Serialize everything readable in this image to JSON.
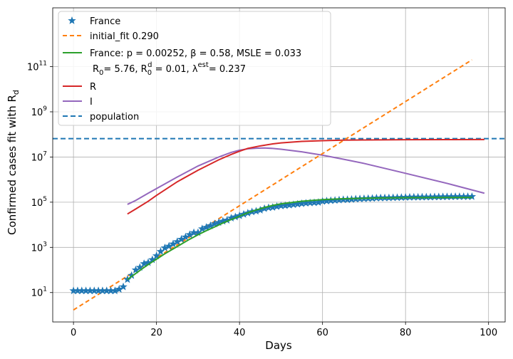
{
  "chart_data": {
    "type": "line",
    "title": "",
    "xlabel": "Days",
    "ylabel": "Confirmed cases fit with R",
    "ylabel_subscript": "d",
    "xlim": [
      -5,
      104
    ],
    "ylim": [
      0.5,
      40000000000000
    ],
    "yscale": "log",
    "grid": true,
    "legend_position": "top-left",
    "x_ticks": [
      0,
      20,
      40,
      60,
      80,
      100
    ],
    "y_ticks": [
      {
        "value": 10,
        "base": "10",
        "exp": "1"
      },
      {
        "value": 1000,
        "base": "10",
        "exp": "3"
      },
      {
        "value": 100000,
        "base": "10",
        "exp": "5"
      },
      {
        "value": 10000000,
        "base": "10",
        "exp": "7"
      },
      {
        "value": 1000000000,
        "base": "10",
        "exp": "9"
      },
      {
        "value": 100000000000,
        "base": "10",
        "exp": "11"
      }
    ],
    "legend": [
      {
        "series": "France",
        "text": "France"
      },
      {
        "series": "initial_fit",
        "text": "initial_fit 0.290"
      },
      {
        "series": "fit",
        "text": "France: p = 0.00252,  β =  0.58, MSLE = 0.033"
      },
      {
        "series": "R",
        "text": "R"
      },
      {
        "series": "I",
        "text": "I"
      },
      {
        "series": "population",
        "text": "population"
      }
    ],
    "legend_fit_line2": {
      "r0_base": "R",
      "r0_sub": "0",
      "r0_val": "= 5.76, ",
      "rd_base": "R",
      "rd_sub": "0",
      "rd_sup": "d",
      "rd_val": " = 0.01, ",
      "lam": "λ",
      "lam_sup": "est",
      "lam_val": "= 0.237"
    },
    "series": [
      {
        "name": "France",
        "kind": "markers",
        "marker": "star",
        "color": "#1f77b4",
        "x": [
          0,
          1,
          2,
          3,
          4,
          5,
          6,
          7,
          8,
          9,
          10,
          11,
          12,
          13,
          14,
          15,
          16,
          17,
          18,
          19,
          20,
          21,
          22,
          23,
          24,
          25,
          26,
          27,
          28,
          29,
          30,
          31,
          32,
          33,
          34,
          35,
          36,
          37,
          38,
          39,
          40,
          41,
          42,
          43,
          44,
          45,
          46,
          47,
          48,
          49,
          50,
          51,
          52,
          53,
          54,
          55,
          56,
          57,
          58,
          59,
          60,
          61,
          62,
          63,
          64,
          65,
          66,
          67,
          68,
          69,
          70,
          71,
          72,
          73,
          74,
          75,
          76,
          77,
          78,
          79,
          80,
          81,
          82,
          83,
          84,
          85,
          86,
          87,
          88,
          89,
          90,
          91,
          92,
          93,
          94,
          95,
          96
        ],
        "y": [
          12,
          12,
          12,
          12,
          12,
          12,
          12,
          12,
          12,
          12,
          12,
          14,
          18,
          38,
          57,
          100,
          130,
          190,
          212,
          285,
          423,
          653,
          949,
          1126,
          1412,
          1784,
          2281,
          2876,
          3661,
          4469,
          4499,
          6633,
          7730,
          9134,
          10995,
          12612,
          14459,
          16018,
          19856,
          22304,
          25233,
          29155,
          32964,
          37575,
          40174,
          44550,
          52128,
          56989,
          59105,
          64338,
          68605,
          70478,
          74390,
          78167,
          82048,
          86334,
          90676,
          93790,
          95403,
          98010,
          109069,
          112950,
          117324,
          120804,
          124869,
          129654,
          130253,
          133470,
          137875,
          140959,
          143303,
          145960,
          148084,
          152894,
          154715,
          155393,
          156480,
          158636,
          160292,
          162100,
          164589,
          166420,
          167299,
          167305,
          168396,
          168518,
          169053,
          171879,
          172465,
          173040,
          174191,
          175027,
          176202,
          176658,
          176970,
          177207,
          177554
        ]
      },
      {
        "name": "initial_fit",
        "kind": "line",
        "dash": "6,4",
        "color": "#ff7f0e",
        "x": [
          0,
          96
        ],
        "y": [
          1.7,
          200000000000
        ]
      },
      {
        "name": "fit",
        "kind": "line",
        "color": "#2ca02c",
        "x": [
          13,
          15,
          17,
          19,
          20,
          22,
          24,
          26,
          28,
          30,
          32,
          34,
          36,
          38,
          40,
          42,
          44,
          46,
          48,
          50,
          55,
          60,
          65,
          70,
          75,
          80,
          85,
          90,
          96
        ],
        "y": [
          38,
          70,
          130,
          230,
          300,
          520,
          850,
          1400,
          2300,
          3600,
          5500,
          8000,
          12000,
          17000,
          24000,
          34000,
          45000,
          58000,
          72000,
          85000,
          110000,
          130000,
          142000,
          150000,
          155000,
          158000,
          160000,
          161000,
          162000
        ]
      },
      {
        "name": "R",
        "kind": "line",
        "color": "#d62728",
        "x": [
          13,
          15,
          18,
          20,
          25,
          30,
          35,
          38,
          40,
          42,
          45,
          48,
          50,
          55,
          60,
          65,
          70,
          80,
          90,
          99
        ],
        "y": [
          30000,
          50000,
          110000,
          200000,
          800000,
          2600000,
          7500000,
          13000000,
          18000000,
          24000000,
          31000000,
          38000000,
          42000000,
          49000000,
          53000000,
          55500000,
          57000000,
          58500000,
          59000000,
          59300000
        ]
      },
      {
        "name": "I",
        "kind": "line",
        "color": "#9467bd",
        "x": [
          13,
          15,
          18,
          20,
          25,
          30,
          35,
          38,
          40,
          42,
          44,
          46,
          48,
          50,
          55,
          60,
          65,
          70,
          80,
          90,
          99
        ],
        "y": [
          80000,
          120000,
          250000,
          400000,
          1300000,
          4000000,
          10000000,
          16000000,
          20000000,
          23000000,
          24500000,
          25000000,
          24000000,
          22000000,
          17000000,
          12000000,
          8000000,
          5200000,
          1900000,
          680000,
          250000
        ]
      },
      {
        "name": "population",
        "kind": "hline",
        "dash": "7,4",
        "color": "#1f77b4",
        "y": [
          65000000
        ]
      }
    ]
  }
}
